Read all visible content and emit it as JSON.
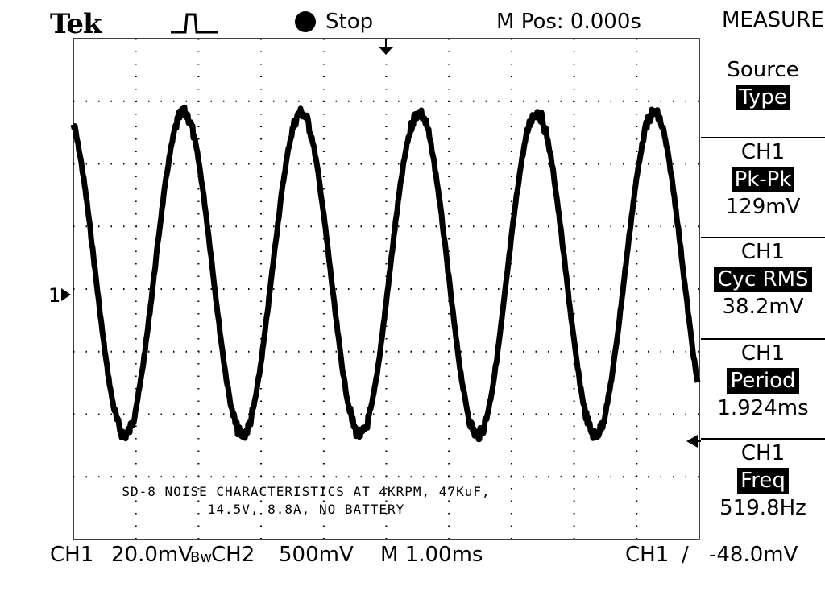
{
  "header": {
    "brand": "Tek",
    "trigger_icon": "pulse-trigger-icon",
    "run_state": "Stop",
    "position": "M Pos: 0.000s",
    "menu_title": "MEASURE"
  },
  "menu": {
    "source_label": "Source",
    "type_label": "Type",
    "measurements": [
      {
        "channel": "CH1",
        "type": "Pk-Pk",
        "value": "129mV"
      },
      {
        "channel": "CH1",
        "type": "Cyc RMS",
        "value": "38.2mV"
      },
      {
        "channel": "CH1",
        "type": "Period",
        "value": "1.924ms"
      },
      {
        "channel": "CH1",
        "type": "Freq",
        "value": "519.8Hz"
      }
    ]
  },
  "annotation": {
    "line1": "SD-8 NOISE CHARACTERISTICS AT 4KRPM, 47KuF,",
    "line2": "14.5V, 8.8A, NO BATTERY"
  },
  "status": {
    "ch1": "CH1",
    "ch1_scale": "20.0mV",
    "bw": "Bw",
    "ch2": "CH2",
    "ch2_scale": "500mV",
    "timebase": "M 1.00ms",
    "trig_channel": "CH1",
    "trig_slope": "/",
    "trig_level": "-48.0mV"
  },
  "screen": {
    "ch1_marker": "1",
    "colors": {
      "ink": "#000000",
      "paper": "#ffffff"
    }
  }
}
